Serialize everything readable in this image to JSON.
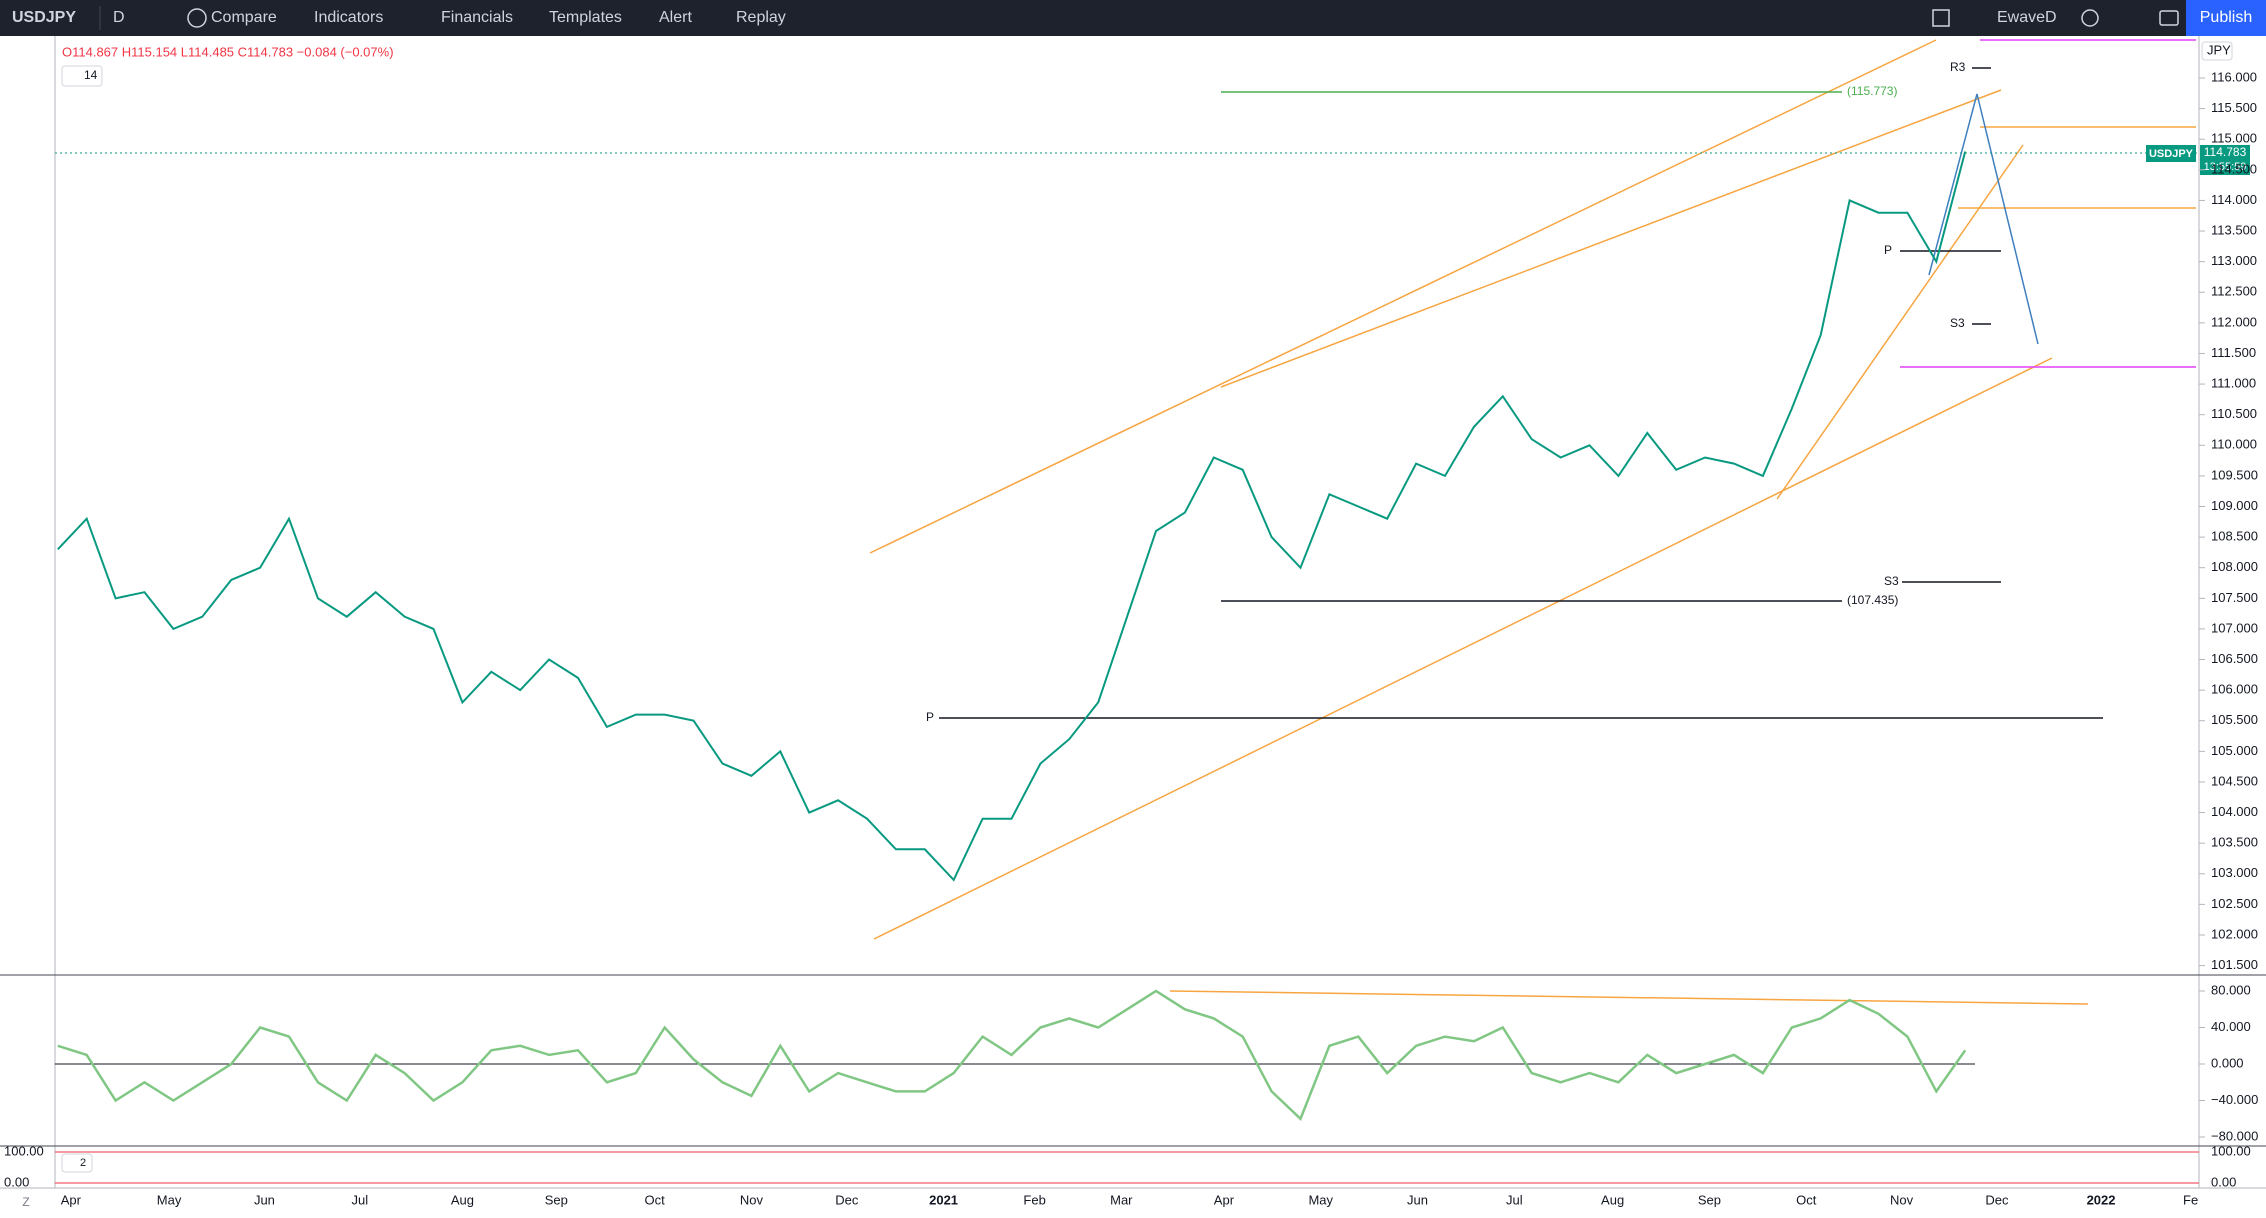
{
  "toolbar": {
    "symbol": "USDJPY",
    "interval": "D",
    "items": [
      "Compare",
      "Indicators",
      "Financials",
      "Templates",
      "Alert",
      "Replay"
    ],
    "layout_name": "EwaveD",
    "publish": "Publish"
  },
  "legend": {
    "ohlc": "O114.867 H115.154 L114.485 C114.783 −0.084 (−0.07%)",
    "length": "14"
  },
  "price_axis": {
    "currency": "JPY",
    "ticks": [
      {
        "value": 116,
        "label": "116.000"
      },
      {
        "value": 115.5,
        "label": "115.500"
      },
      {
        "value": 115,
        "label": "115.000"
      },
      {
        "value": 114.5,
        "label": "114.500"
      },
      {
        "value": 114,
        "label": "114.000"
      },
      {
        "value": 113.5,
        "label": "113.500"
      },
      {
        "value": 113,
        "label": "113.000"
      },
      {
        "value": 112.5,
        "label": "112.500"
      },
      {
        "value": 112,
        "label": "112.000"
      },
      {
        "value": 111.5,
        "label": "111.500"
      },
      {
        "value": 111,
        "label": "111.000"
      },
      {
        "value": 110.5,
        "label": "110.500"
      },
      {
        "value": 110,
        "label": "110.000"
      },
      {
        "value": 109.5,
        "label": "109.500"
      },
      {
        "value": 109,
        "label": "109.000"
      },
      {
        "value": 108.5,
        "label": "108.500"
      },
      {
        "value": 108,
        "label": "108.000"
      },
      {
        "value": 107.5,
        "label": "107.500"
      },
      {
        "value": 107,
        "label": "107.000"
      },
      {
        "value": 106.5,
        "label": "106.500"
      },
      {
        "value": 106,
        "label": "106.000"
      },
      {
        "value": 105.5,
        "label": "105.500"
      },
      {
        "value": 105,
        "label": "105.000"
      },
      {
        "value": 104.5,
        "label": "104.500"
      },
      {
        "value": 104,
        "label": "104.000"
      },
      {
        "value": 103.5,
        "label": "103.500"
      },
      {
        "value": 103,
        "label": "103.000"
      },
      {
        "value": 102.5,
        "label": "102.500"
      },
      {
        "value": 102,
        "label": "102.000"
      },
      {
        "value": 101.5,
        "label": "101.500"
      }
    ]
  },
  "price_badge": {
    "symbol": "USDJPY",
    "price": "114.783",
    "countdown": "13:55:59"
  },
  "annotations": {
    "upper_level": "(115.773)",
    "lower_level": "(107.435)",
    "r3": "R3",
    "s3_upper": "S3",
    "pivot_upper": "P",
    "s3_lower": "S3",
    "pivot_lower": "P"
  },
  "closes": [
    108.3,
    108.8,
    107.5,
    107.6,
    107.0,
    107.2,
    107.8,
    108.0,
    108.8,
    107.5,
    107.2,
    107.6,
    107.2,
    107.0,
    105.8,
    106.3,
    106.0,
    106.5,
    106.2,
    105.4,
    105.6,
    105.6,
    105.5,
    104.8,
    104.6,
    105.0,
    104.0,
    104.2,
    103.9,
    103.4,
    103.4,
    102.9,
    103.9,
    103.9,
    104.8,
    105.2,
    105.8,
    107.2,
    108.6,
    108.9,
    109.8,
    109.6,
    108.5,
    108.0,
    109.2,
    109.0,
    108.8,
    109.7,
    109.5,
    110.3,
    110.8,
    110.1,
    109.8,
    110.0,
    109.5,
    110.2,
    109.6,
    109.8,
    109.7,
    109.5,
    110.6,
    111.8,
    114.0,
    113.8,
    113.8,
    113.0,
    114.8
  ],
  "oscillator": {
    "ticks": [
      {
        "value": 80,
        "label": "80.000"
      },
      {
        "value": 40,
        "label": "40.000"
      },
      {
        "value": 0,
        "label": "0.000"
      },
      {
        "value": -40,
        "label": "−40.000"
      },
      {
        "value": -80,
        "label": "−80.000"
      }
    ],
    "values": [
      20,
      10,
      -40,
      -20,
      -40,
      -20,
      0,
      40,
      30,
      -20,
      -40,
      10,
      -10,
      -40,
      -20,
      15,
      20,
      10,
      15,
      -20,
      -10,
      40,
      5,
      -20,
      -35,
      20,
      -30,
      -10,
      -20,
      -30,
      -30,
      -10,
      30,
      10,
      40,
      50,
      40,
      60,
      80,
      60,
      50,
      30,
      -30,
      -60,
      20,
      30,
      -10,
      20,
      30,
      25,
      40,
      -10,
      -20,
      -10,
      -20,
      10,
      -10,
      0,
      10,
      -10,
      40,
      50,
      70,
      55,
      30,
      -30,
      15
    ]
  },
  "stochastic": {
    "length": "2",
    "ticks": [
      {
        "value": 100,
        "label": "100.00"
      },
      {
        "value": 0,
        "label": "0.00"
      }
    ]
  },
  "time_axis": [
    "Apr",
    "May",
    "Jun",
    "Jul",
    "Aug",
    "Sep",
    "Oct",
    "Nov",
    "Dec",
    "2021",
    "Feb",
    "Mar",
    "Apr",
    "May",
    "Jun",
    "Jul",
    "Aug",
    "Sep",
    "Oct",
    "Nov",
    "Dec",
    "2022",
    "Fe"
  ],
  "footer": {
    "zoom": "Z"
  }
}
